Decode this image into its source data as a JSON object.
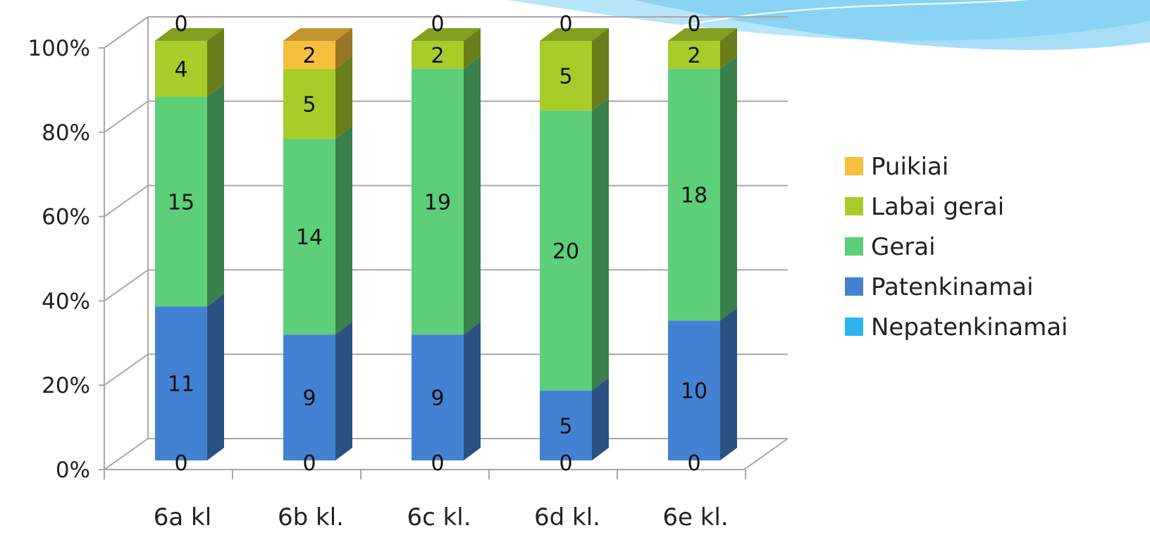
{
  "chart_data": {
    "type": "bar",
    "stacked": "percent",
    "three_d": true,
    "title": "",
    "xlabel": "",
    "ylabel": "",
    "ylim": [
      0,
      100
    ],
    "y_ticks": [
      "0%",
      "20%",
      "40%",
      "60%",
      "80%",
      "100%"
    ],
    "grid": true,
    "legend_position": "right",
    "categories": [
      "6a kl",
      "6b kl.",
      "6c kl.",
      "6d kl.",
      "6e kl."
    ],
    "series": [
      {
        "name": "Nepatenkinamai",
        "color": "#2bb5f0",
        "values": [
          0,
          0,
          0,
          0,
          0
        ]
      },
      {
        "name": "Patenkinamai",
        "color": "#4382d3",
        "values": [
          11,
          9,
          9,
          5,
          10
        ]
      },
      {
        "name": "Gerai",
        "color": "#5ccf78",
        "values": [
          15,
          14,
          19,
          20,
          18
        ]
      },
      {
        "name": "Labai gerai",
        "color": "#a8cc2a",
        "values": [
          4,
          5,
          2,
          5,
          2
        ]
      },
      {
        "name": "Puikiai",
        "color": "#f7bf3e",
        "values": [
          0,
          2,
          0,
          0,
          0
        ]
      }
    ],
    "legend_order": [
      "Puikiai",
      "Labai gerai",
      "Gerai",
      "Patenkinamai",
      "Nepatenkinamai"
    ]
  }
}
